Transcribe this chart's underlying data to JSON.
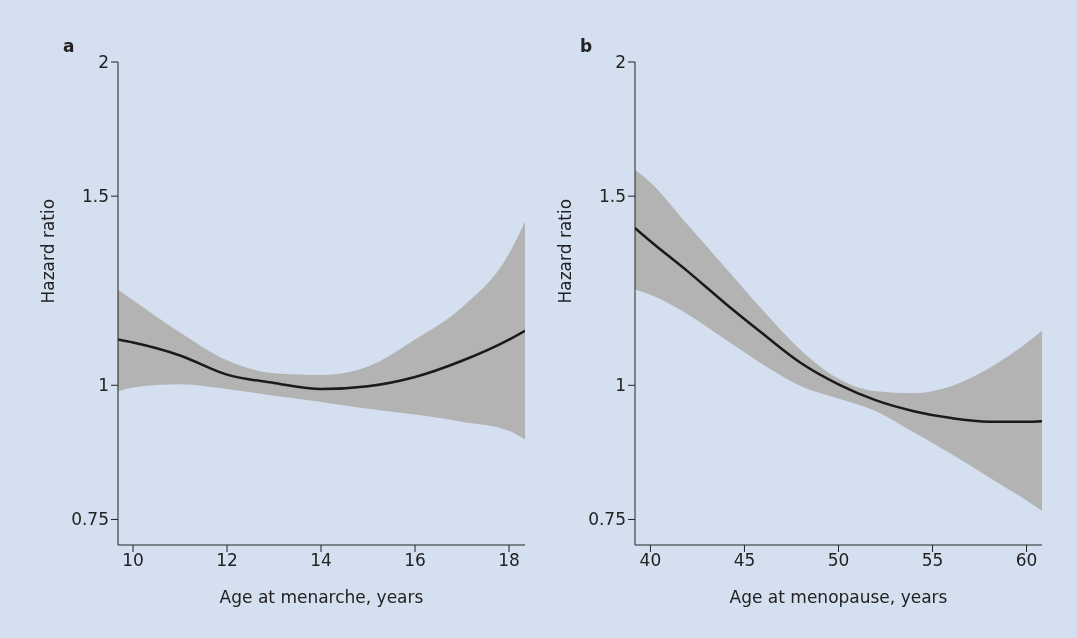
{
  "chart_data": [
    {
      "type": "line",
      "title": "a",
      "xlabel": "Age at menarche, years",
      "ylabel": "Hazard ratio",
      "log": true,
      "grid": false,
      "legend": false,
      "marker": "none",
      "line_style": "solid",
      "xlim": [
        9.68,
        18.34
      ],
      "xticks": [
        10,
        12,
        14,
        16,
        18
      ],
      "ylim": [
        0.71,
        2
      ],
      "yticks": [
        0.75,
        1,
        1.5,
        2
      ],
      "x": [
        9.68,
        10,
        11,
        12,
        13,
        14,
        15,
        16,
        17,
        18,
        18.34
      ],
      "series": [
        {
          "color": "#1a1a1a",
          "values": [
            1.103,
            1.096,
            1.066,
            1.023,
            1.005,
            0.992,
            0.998,
            1.018,
            1.054,
            1.103,
            1.124
          ],
          "lower": [
            0.987,
            0.995,
            1.002,
            0.992,
            0.978,
            0.965,
            0.951,
            0.939,
            0.925,
            0.907,
            0.89
          ],
          "upper": [
            1.228,
            1.2,
            1.12,
            1.055,
            1.026,
            1.022,
            1.041,
            1.103,
            1.182,
            1.326,
            1.42
          ]
        }
      ]
    },
    {
      "type": "line",
      "title": "b",
      "xlabel": "Age at menopause, years",
      "ylabel": "Hazard ratio",
      "log": true,
      "grid": false,
      "legend": false,
      "marker": "none",
      "line_style": "solid",
      "xlim": [
        39.18,
        60.82
      ],
      "xticks": [
        40,
        45,
        50,
        55,
        60
      ],
      "ylim": [
        0.71,
        2
      ],
      "yticks": [
        0.75,
        1,
        1.5,
        2
      ],
      "x": [
        39.18,
        40,
        42,
        44,
        46,
        48,
        50,
        52,
        54,
        56,
        58,
        60,
        60.82
      ],
      "series": [
        {
          "color": "#1a1a1a",
          "values": [
            1.401,
            1.362,
            1.276,
            1.191,
            1.116,
            1.049,
            1.002,
            0.968,
            0.946,
            0.932,
            0.925,
            0.925,
            0.926
          ],
          "lower": [
            1.228,
            1.214,
            1.164,
            1.103,
            1.045,
            0.998,
            0.972,
            0.946,
            0.904,
            0.863,
            0.821,
            0.781,
            0.764
          ],
          "upper": [
            1.587,
            1.545,
            1.409,
            1.286,
            1.173,
            1.078,
            1.014,
            0.987,
            0.983,
            0.998,
            1.037,
            1.095,
            1.124
          ]
        }
      ]
    }
  ]
}
